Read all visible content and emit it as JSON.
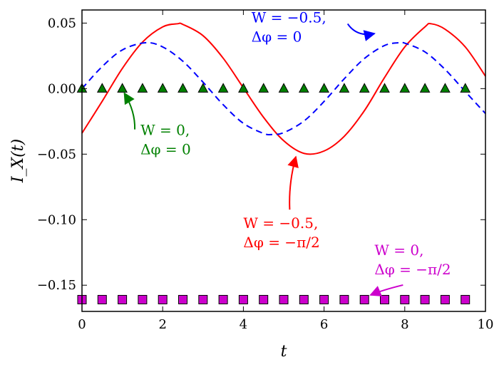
{
  "chart_data": {
    "type": "line",
    "xlabel": "t",
    "ylabel": "I_X(t)",
    "xlim": [
      0,
      10
    ],
    "ylim": [
      -0.17,
      0.06
    ],
    "xticks": [
      0,
      2,
      4,
      6,
      8,
      10
    ],
    "xtick_labels": [
      "0",
      "2",
      "4",
      "6",
      "8",
      "10"
    ],
    "yticks": [
      0.05,
      0.0,
      -0.05,
      -0.1,
      -0.15
    ],
    "ytick_labels": [
      "0.05",
      "0.00",
      "−0.05",
      "−0.10",
      "−0.15"
    ],
    "grid": false,
    "series": [
      {
        "style": "solid",
        "color": "#ff0000",
        "x": [
          0,
          0.5,
          1.0,
          1.5,
          2.0,
          2.37,
          2.5,
          3.0,
          3.5,
          4.0,
          4.5,
          5.0,
          5.51,
          6.0,
          6.5,
          7.0,
          7.5,
          8.0,
          8.5,
          8.65,
          9.0,
          9.5,
          10.0
        ],
        "y": [
          -0.034,
          -0.0097,
          0.0154,
          0.0355,
          0.0471,
          0.0495,
          0.049,
          0.0404,
          0.0232,
          0.0006,
          -0.0219,
          -0.0398,
          -0.0495,
          -0.0476,
          -0.0364,
          -0.0168,
          0.0085,
          0.0318,
          0.0471,
          0.0495,
          0.0453,
          0.0318,
          0.0095
        ]
      },
      {
        "style": "dashed",
        "color": "#0000ff",
        "x": [
          0,
          0.5,
          1.0,
          1.57,
          2.0,
          2.5,
          3.0,
          3.5,
          4.0,
          4.5,
          4.71,
          5.0,
          5.5,
          6.0,
          6.5,
          7.0,
          7.5,
          7.85,
          8.0,
          8.5,
          9.0,
          9.5,
          10.0
        ],
        "y": [
          0.0,
          0.0168,
          0.0295,
          0.035,
          0.0318,
          0.0209,
          0.0049,
          -0.0123,
          -0.0265,
          -0.0342,
          -0.035,
          -0.0336,
          -0.0248,
          -0.0098,
          0.0075,
          0.023,
          0.0329,
          0.035,
          0.0347,
          0.028,
          0.0146,
          -0.0023,
          -0.019
        ]
      },
      {
        "style": "markers",
        "marker": "triangle",
        "color": "#008000",
        "x": [
          0,
          0.5,
          1.0,
          1.5,
          2.0,
          2.5,
          3.0,
          3.5,
          4.0,
          4.5,
          5.0,
          5.5,
          6.0,
          6.5,
          7.0,
          7.5,
          8.0,
          8.5,
          9.0,
          9.5
        ],
        "y": [
          0,
          0,
          0,
          0,
          0,
          0,
          0,
          0,
          0,
          0,
          0,
          0,
          0,
          0,
          0,
          0,
          0,
          0,
          0,
          0
        ]
      },
      {
        "style": "markers",
        "marker": "square",
        "color": "#cc00cc",
        "x": [
          0,
          0.5,
          1.0,
          1.5,
          2.0,
          2.5,
          3.0,
          3.5,
          4.0,
          4.5,
          5.0,
          5.5,
          6.0,
          6.5,
          7.0,
          7.5,
          8.0,
          8.5,
          9.0,
          9.5
        ],
        "y": [
          -0.161,
          -0.161,
          -0.161,
          -0.161,
          -0.161,
          -0.161,
          -0.161,
          -0.161,
          -0.161,
          -0.161,
          -0.161,
          -0.161,
          -0.161,
          -0.161,
          -0.161,
          -0.161,
          -0.161,
          -0.161,
          -0.161,
          -0.161
        ]
      }
    ],
    "annotations": [
      {
        "line1": "W = −0.5,",
        "line2": "Δφ = 0",
        "color": "#0000ff",
        "text_at": [
          4.2,
          0.0505
        ],
        "arrow_to": [
          7.25,
          0.042
        ]
      },
      {
        "line1": "W = 0,",
        "line2": "Δφ = 0",
        "color": "#008000",
        "text_at": [
          1.45,
          -0.0355
        ],
        "arrow_to": [
          1.05,
          -0.0035
        ]
      },
      {
        "line1": "W = −0.5,",
        "line2": "Δφ = −π/2",
        "color": "#ff0000",
        "text_at": [
          4.0,
          -0.1065
        ],
        "arrow_to": [
          5.3,
          -0.052
        ]
      },
      {
        "line1": "W = 0,",
        "line2": "Δφ = −π/2",
        "color": "#cc00cc",
        "text_at": [
          7.25,
          -0.127
        ],
        "arrow_to": [
          7.15,
          -0.1575
        ]
      }
    ]
  }
}
